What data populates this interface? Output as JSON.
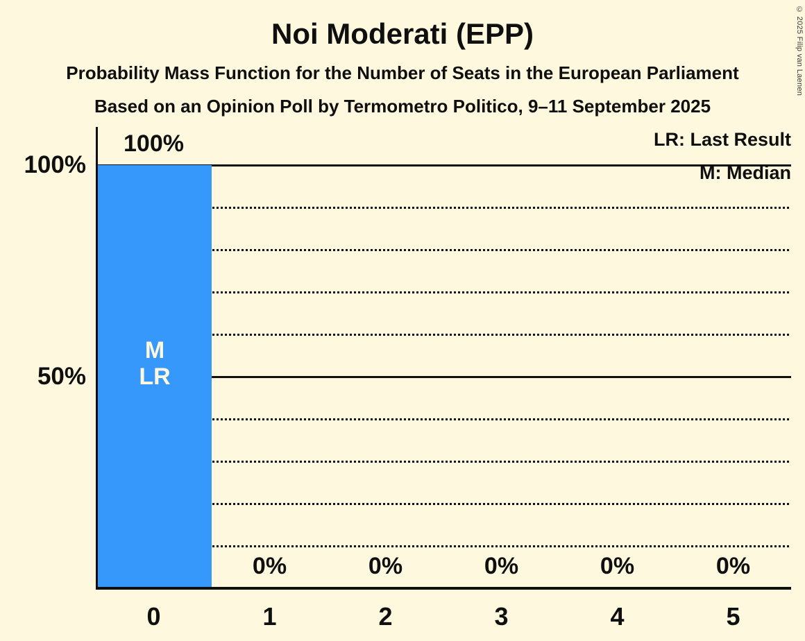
{
  "copyright": "© 2025 Filip van Laenen",
  "chart_data": {
    "type": "bar",
    "title": "Noi Moderati (EPP)",
    "subtitle": "Probability Mass Function for the Number of Seats in the European Parliament",
    "note": "Based on an Opinion Poll by Termometro Politico, 9–11 September 2025",
    "categories": [
      "0",
      "1",
      "2",
      "3",
      "4",
      "5"
    ],
    "values": [
      100,
      0,
      0,
      0,
      0,
      0
    ],
    "value_labels": [
      "100%",
      "0%",
      "0%",
      "0%",
      "0%",
      "0%"
    ],
    "xlabel": "",
    "ylabel": "",
    "ylim": [
      0,
      100
    ],
    "ytick_labels": {
      "y100": "100%",
      "y50": "50%"
    },
    "gridlines": {
      "solid_at": [
        100,
        50
      ],
      "dotted_at": [
        90,
        80,
        70,
        60,
        40,
        30,
        20,
        10
      ]
    },
    "annotated_bar_index": 0,
    "bar_annotations": {
      "median": "M",
      "last_result": "LR"
    },
    "legend": {
      "last_result": "LR: Last Result",
      "median": "M: Median"
    },
    "legend_position": "top-right",
    "grid_on": true,
    "bar_color": "#3598FA",
    "background_color": "#FDF8DE",
    "text_color": "#0F0F0F"
  }
}
